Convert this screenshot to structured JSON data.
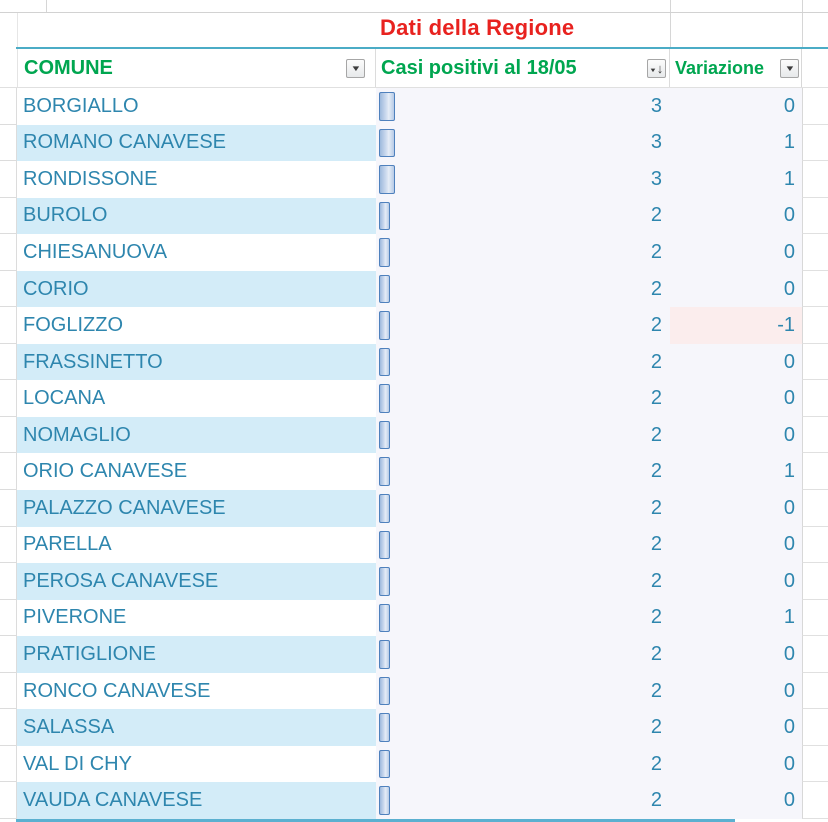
{
  "banner": {
    "label": "Dati della Regione"
  },
  "table": {
    "columns": [
      {
        "key": "comune",
        "label": "COMUNE",
        "filter_icon": "dropdown-arrow"
      },
      {
        "key": "casi",
        "label": "Casi positivi al 18/05",
        "filter_icon": "sort-descending"
      },
      {
        "key": "variazione",
        "label": "Variazione",
        "filter_icon": "dropdown-arrow"
      }
    ],
    "rows": [
      {
        "comune": "BORGIALLO",
        "casi": 3,
        "variazione": 0
      },
      {
        "comune": "ROMANO CANAVESE",
        "casi": 3,
        "variazione": 1
      },
      {
        "comune": "RONDISSONE",
        "casi": 3,
        "variazione": 1
      },
      {
        "comune": "BUROLO",
        "casi": 2,
        "variazione": 0
      },
      {
        "comune": "CHIESANUOVA",
        "casi": 2,
        "variazione": 0
      },
      {
        "comune": "CORIO",
        "casi": 2,
        "variazione": 0
      },
      {
        "comune": "FOGLIZZO",
        "casi": 2,
        "variazione": -1,
        "variazione_highlight": true
      },
      {
        "comune": "FRASSINETTO",
        "casi": 2,
        "variazione": 0
      },
      {
        "comune": "LOCANA",
        "casi": 2,
        "variazione": 0
      },
      {
        "comune": "NOMAGLIO",
        "casi": 2,
        "variazione": 0
      },
      {
        "comune": "ORIO CANAVESE",
        "casi": 2,
        "variazione": 1
      },
      {
        "comune": "PALAZZO CANAVESE",
        "casi": 2,
        "variazione": 0
      },
      {
        "comune": "PARELLA",
        "casi": 2,
        "variazione": 0
      },
      {
        "comune": "PEROSA CANAVESE",
        "casi": 2,
        "variazione": 0
      },
      {
        "comune": "PIVERONE",
        "casi": 2,
        "variazione": 1
      },
      {
        "comune": "PRATIGLIONE",
        "casi": 2,
        "variazione": 0
      },
      {
        "comune": "RONCO CANAVESE",
        "casi": 2,
        "variazione": 0
      },
      {
        "comune": "SALASSA",
        "casi": 2,
        "variazione": 0
      },
      {
        "comune": "VAL DI CHY",
        "casi": 2,
        "variazione": 0
      },
      {
        "comune": "VAUDA CANAVESE",
        "casi": 2,
        "variazione": 0
      }
    ]
  },
  "colors": {
    "header_green": "#00A650",
    "banner_red": "#E8221F",
    "row_text": "#2E86AE",
    "band_blue": "#D3ECF8",
    "cell_fill": "#F6F6FB",
    "negative_fill": "#FBEDED",
    "bar_border": "#4F81BD",
    "accent_teal": "#4BACC6"
  }
}
